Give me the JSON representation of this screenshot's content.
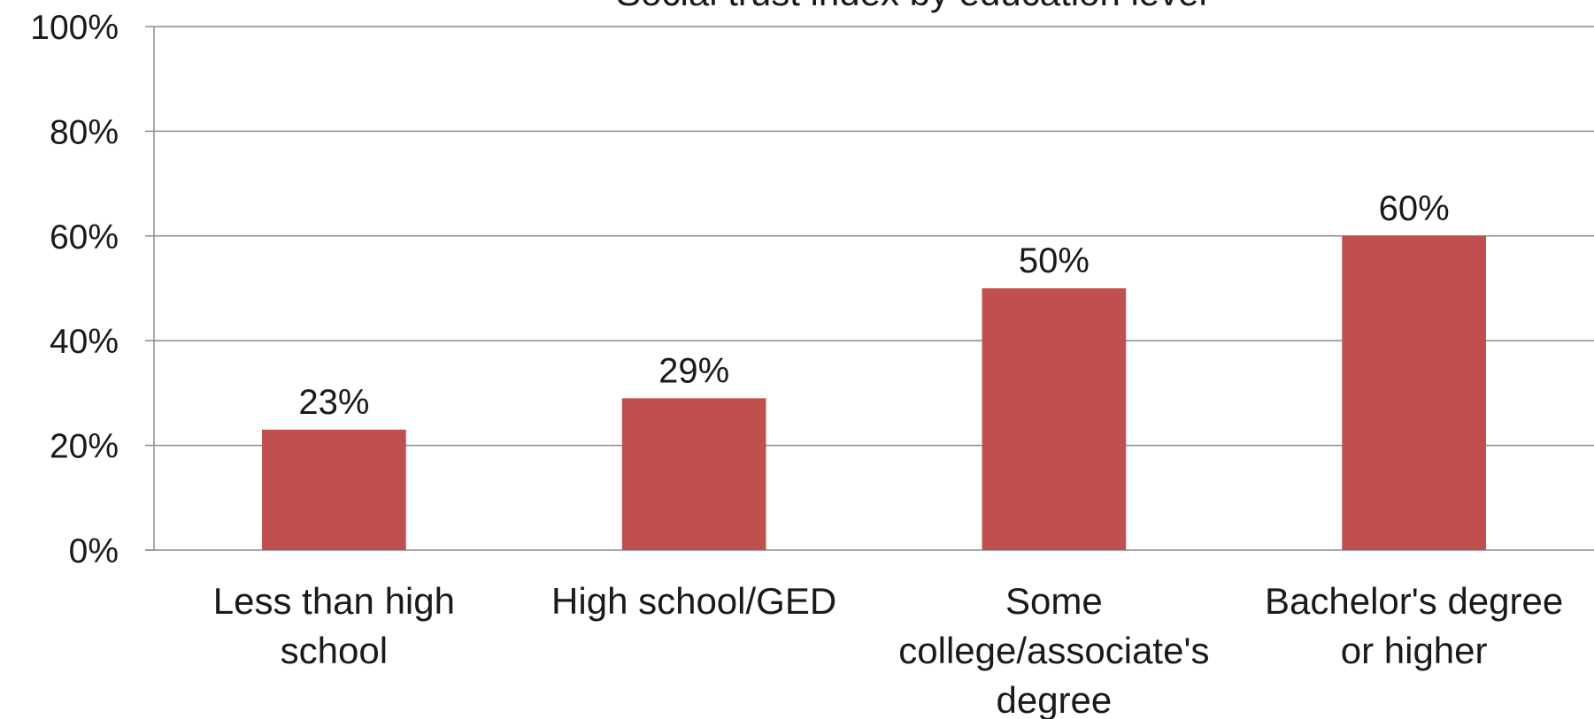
{
  "chart_data": {
    "type": "bar",
    "title": "Social trust index by education level",
    "categories": [
      [
        "Less than high",
        "school"
      ],
      [
        "High school/GED"
      ],
      [
        "Some",
        "college/associate's",
        "degree"
      ],
      [
        "Bachelor's degree",
        "or higher"
      ]
    ],
    "values": [
      23,
      29,
      50,
      60
    ],
    "value_labels": [
      "23%",
      "29%",
      "50%",
      "60%"
    ],
    "ylim": [
      0,
      100
    ],
    "yticks": [
      0,
      20,
      40,
      60,
      80,
      100
    ],
    "ytick_labels": [
      "0%",
      "20%",
      "40%",
      "60%",
      "80%",
      "100%"
    ],
    "xlabel": "",
    "ylabel": "",
    "grid": true,
    "legend": "none",
    "bar_color": "#c0504d",
    "grid_color": "#8c8c8c"
  }
}
